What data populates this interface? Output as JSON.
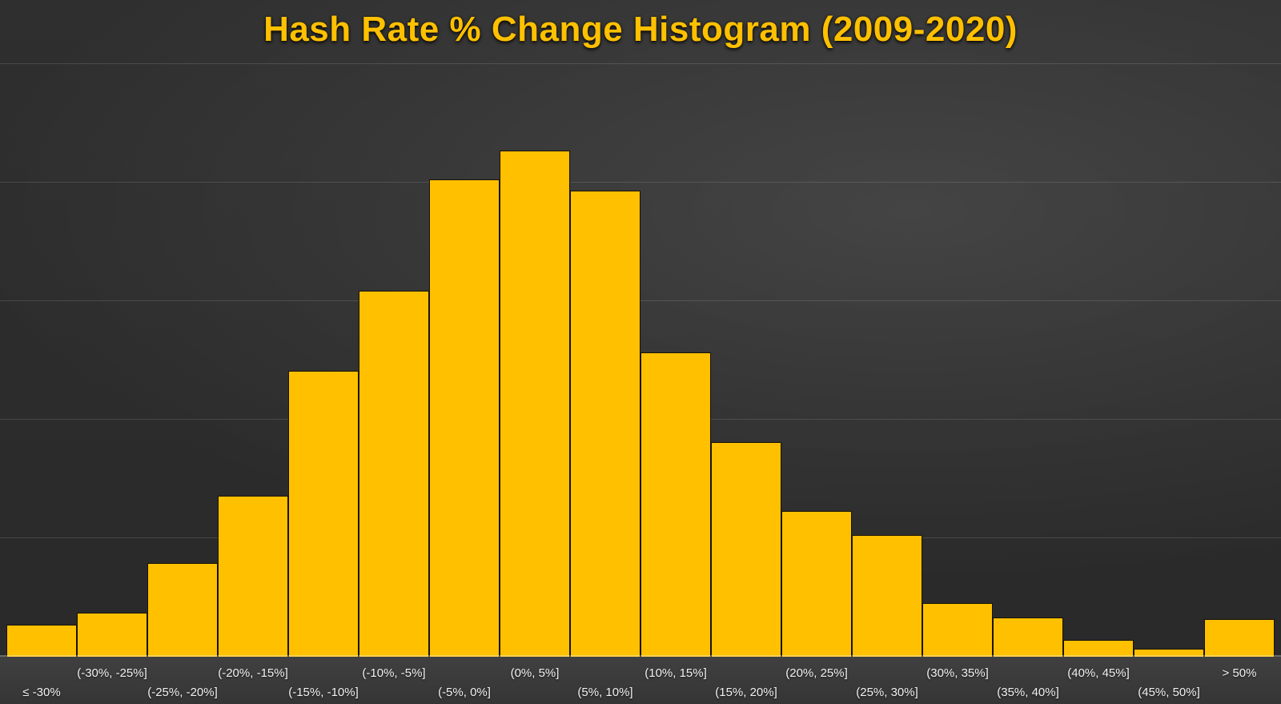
{
  "title": "Hash Rate % Change Histogram (2009-2020)",
  "colors": {
    "accent": "#FFC000",
    "bar_outline": "#191307",
    "background_dark": "#2b2b2b",
    "label_text": "#F1F1F1",
    "gridline": "rgba(255,255,255,0.13)"
  },
  "chart_data": {
    "type": "bar",
    "subtype": "histogram",
    "title": "Hash Rate % Change Histogram (2009-2020)",
    "xlabel": "",
    "ylabel": "",
    "categories": [
      "≤ -30%",
      "(-30%, -25%]",
      "(-25%, -20%]",
      "(-20%, -15%]",
      "(-15%, -10%]",
      "(-10%, -5%]",
      "(-5%, 0%]",
      "(0%, 5%]",
      "(5%, 10%]",
      "(10%, 15%]",
      "(15%, 20%]",
      "(20%, 25%]",
      "(25%, 30%]",
      "(30%, 35%]",
      "(35%, 40%]",
      "(40%, 45%]",
      "(45%, 50%]",
      "> 50%"
    ],
    "values": [
      0.27,
      0.37,
      0.79,
      1.36,
      2.41,
      3.09,
      4.03,
      4.27,
      3.93,
      2.57,
      1.81,
      1.23,
      1.03,
      0.45,
      0.33,
      0.14,
      0.07,
      0.32
    ],
    "values_unit": "horizontal-gridline intervals (no y-axis tick labels are visible in the chart)",
    "ylim": [
      0,
      5
    ],
    "grid": "5 faint unlabeled horizontal gridlines",
    "legend": "none",
    "bar_color": "#FFC000",
    "x_tick_label_layout": "staggered two rows: odd bins (1st, 3rd, ...) on lower row, even bins on upper row"
  }
}
